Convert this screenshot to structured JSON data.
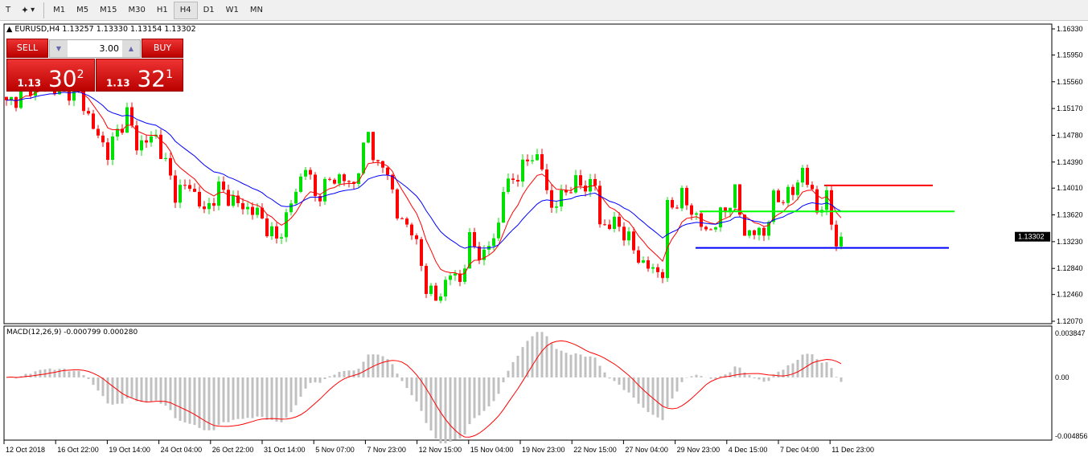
{
  "toolbar": {
    "timeframes": [
      "M1",
      "M5",
      "M15",
      "M30",
      "H1",
      "H4",
      "D1",
      "W1",
      "MN"
    ],
    "active": "H4"
  },
  "chart": {
    "header": "EURUSD,H4  1.13257 1.13330 1.13154 1.13302",
    "current_price": "1.13302",
    "colors": {
      "bull": "#00e000",
      "bear": "#ff0000",
      "ma_fast": "#ff0000",
      "ma_slow": "#0000ff",
      "macd_hist": "#c0c0c0",
      "macd_signal": "#ff0000"
    }
  },
  "trade_panel": {
    "sell_label": "SELL",
    "buy_label": "BUY",
    "lot": "3.00",
    "sell_big": "1.13",
    "sell_pips": "30",
    "sell_frac": "2",
    "buy_big": "1.13",
    "buy_pips": "32",
    "buy_frac": "1"
  },
  "macd": {
    "label": "MACD(12,26,9) -0.000799 0.000280",
    "axis": [
      "0.003847",
      "0.00",
      "-0.004856"
    ]
  },
  "chart_data": {
    "type": "candlestick",
    "symbol": "EURUSD",
    "timeframe": "H4",
    "price_axis": [
      "1.16330",
      "1.15950",
      "1.15560",
      "1.15170",
      "1.14780",
      "1.14390",
      "1.14010",
      "1.13620",
      "1.13230",
      "1.12840",
      "1.12460",
      "1.12070"
    ],
    "ylim": [
      1.1207,
      1.1633
    ],
    "date_axis": [
      "12 Oct 2018",
      "16 Oct 22:00",
      "19 Oct 14:00",
      "24 Oct 04:00",
      "26 Oct 22:00",
      "31 Oct 14:00",
      "5 Nov 07:00",
      "7 Nov 23:00",
      "12 Nov 15:00",
      "15 Nov 04:00",
      "19 Nov 23:00",
      "22 Nov 15:00",
      "27 Nov 04:00",
      "29 Nov 23:00",
      "4 Dec 15:00",
      "7 Dec 04:00",
      "11 Dec 23:00"
    ],
    "close_path": [
      [
        0,
        1.1523
      ],
      [
        6,
        1.1552
      ],
      [
        15,
        1.1541
      ],
      [
        18,
        1.1488
      ],
      [
        21,
        1.1453
      ],
      [
        25,
        1.1511
      ],
      [
        27,
        1.1464
      ],
      [
        31,
        1.1476
      ],
      [
        35,
        1.1394
      ],
      [
        38,
        1.1406
      ],
      [
        41,
        1.1365
      ],
      [
        44,
        1.14
      ],
      [
        48,
        1.1377
      ],
      [
        52,
        1.1365
      ],
      [
        56,
        1.1324
      ],
      [
        58,
        1.1359
      ],
      [
        62,
        1.1435
      ],
      [
        64,
        1.1388
      ],
      [
        68,
        1.1418
      ],
      [
        72,
        1.1406
      ],
      [
        75,
        1.1482
      ],
      [
        77,
        1.1429
      ],
      [
        79,
        1.1429
      ],
      [
        81,
        1.1359
      ],
      [
        84,
        1.1342
      ],
      [
        87,
        1.126
      ],
      [
        89,
        1.1236
      ],
      [
        92,
        1.1277
      ],
      [
        94,
        1.1265
      ],
      [
        96,
        1.1324
      ],
      [
        99,
        1.1301
      ],
      [
        102,
        1.1348
      ],
      [
        103,
        1.14
      ],
      [
        107,
        1.1429
      ],
      [
        109,
        1.1453
      ],
      [
        111,
        1.1429
      ],
      [
        113,
        1.1371
      ],
      [
        117,
        1.1406
      ],
      [
        122,
        1.1406
      ],
      [
        123,
        1.1348
      ],
      [
        127,
        1.1348
      ],
      [
        129,
        1.1324
      ],
      [
        132,
        1.1289
      ],
      [
        136,
        1.1277
      ],
      [
        137,
        1.1371
      ],
      [
        140,
        1.1388
      ],
      [
        143,
        1.1359
      ],
      [
        145,
        1.1336
      ],
      [
        148,
        1.1359
      ],
      [
        151,
        1.1394
      ],
      [
        153,
        1.1336
      ],
      [
        157,
        1.1336
      ],
      [
        159,
        1.1383
      ],
      [
        163,
        1.1394
      ],
      [
        165,
        1.1429
      ],
      [
        168,
        1.1371
      ],
      [
        170,
        1.1383
      ],
      [
        172,
        1.1324
      ],
      [
        173,
        1.13302
      ]
    ],
    "levels": [
      {
        "price": 1.1405,
        "color": "#ff0000"
      },
      {
        "price": 1.1367,
        "color": "#00ff00"
      },
      {
        "price": 1.1314,
        "color": "#0000ff"
      }
    ]
  }
}
